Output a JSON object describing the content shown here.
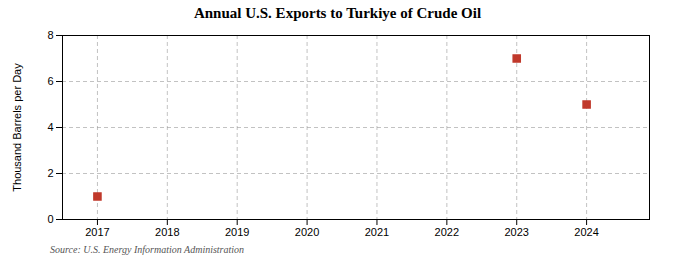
{
  "chart_data": {
    "type": "scatter",
    "title": "Annual U.S. Exports to Turkiye of Crude Oil",
    "ylabel": "Thousand Barrels per Day",
    "source": "Source: U.S. Energy Information Administration",
    "x": [
      2017,
      2023,
      2024
    ],
    "values": [
      1,
      7,
      5
    ],
    "color": "#c0392b",
    "marker": "square",
    "xlim": [
      2016.5,
      2024.9
    ],
    "xticks": [
      2017,
      2018,
      2019,
      2020,
      2021,
      2022,
      2023,
      2024
    ],
    "ylim": [
      0,
      8
    ],
    "yticks": [
      0,
      2,
      4,
      6,
      8
    ],
    "grid": true
  }
}
